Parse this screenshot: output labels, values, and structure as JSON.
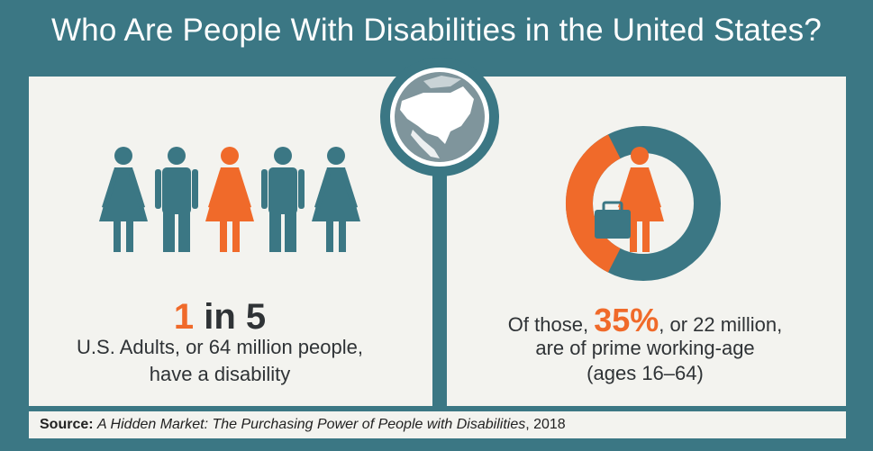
{
  "title": "Who Are People With Disabilities in the United States?",
  "left": {
    "stat_number": "1",
    "stat_rest": " in 5",
    "line1": "U.S. Adults, or 64 million people,",
    "line2": "have a disability",
    "highlighted_figure_index": 2,
    "figure_count": 5
  },
  "right": {
    "prefix": "Of those, ",
    "percent": "35%",
    "suffix": ", or 22 million,",
    "line2": "are of prime working-age",
    "line3": "(ages 16–64)",
    "donut_share": 0.35
  },
  "source": {
    "label": "Source:",
    "title": "A Hidden Market: The Purchasing Power of People with Disabilities",
    "year": ", 2018"
  },
  "colors": {
    "teal": "#3b7784",
    "orange": "#f06a2a",
    "panel": "#f3f3ef",
    "text": "#2f3336"
  },
  "icons": [
    "female-figure-icon",
    "male-figure-icon",
    "globe-icon",
    "briefcase-icon"
  ]
}
